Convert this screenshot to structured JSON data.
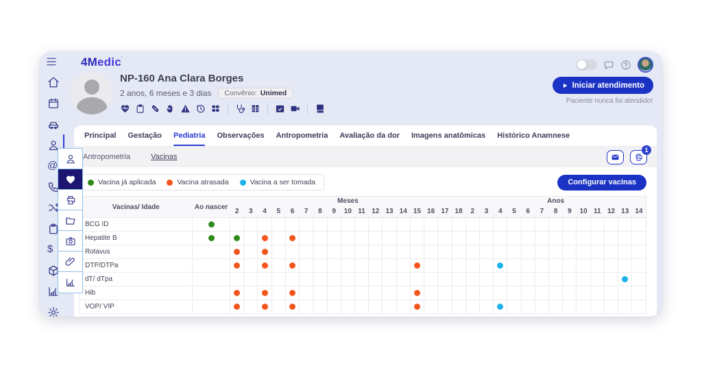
{
  "topbar": {
    "logo": {
      "bold": "4M",
      "rest": "edic",
      "mark": "’"
    },
    "right": [
      {
        "icon": "toggle",
        "name": "theme-toggle"
      },
      {
        "icon": "chat",
        "name": "chat"
      },
      {
        "icon": "help",
        "name": "help"
      },
      {
        "icon": "avatar",
        "name": "user-avatar"
      }
    ]
  },
  "sidebar": {
    "items": [
      {
        "icon": "home"
      },
      {
        "icon": "calendar"
      },
      {
        "icon": "vehicle"
      },
      {
        "icon": "person",
        "active": true
      },
      {
        "icon": "at"
      },
      {
        "icon": "phone"
      },
      {
        "icon": "split-arrows"
      },
      {
        "icon": "clipboard"
      },
      {
        "icon": "dollar"
      },
      {
        "icon": "box"
      },
      {
        "icon": "growth-chart"
      },
      {
        "icon": "gear"
      }
    ]
  },
  "quickbar": {
    "items": [
      {
        "icon": "person"
      },
      {
        "icon": "heart-pulse",
        "active": true
      },
      {
        "icon": "printer"
      },
      {
        "icon": "folder"
      },
      {
        "icon": "camera"
      },
      {
        "icon": "paperclip"
      },
      {
        "icon": "growth-chart"
      }
    ]
  },
  "patient": {
    "name": "NP-160 Ana Clara Borges",
    "age": "2 anos, 6 meses e 3 dias",
    "insurance_label": "Convênio:",
    "insurance_value": "Unimed",
    "action_icon_groups": [
      [
        "heart-pulse",
        "clipboard",
        "pill",
        "hand",
        "warning",
        "history",
        "grid"
      ],
      [
        "stethoscope",
        "spreadsheet"
      ],
      [
        "calendar-check",
        "video"
      ],
      [
        "book"
      ]
    ],
    "start_button": "Iniciar atendimento",
    "note": "Paciente nunca foi atendido!"
  },
  "tabs": {
    "items": [
      "Principal",
      "Gestação",
      "Pediatria",
      "Observações",
      "Antropometria",
      "Avaliação da dor",
      "Imagens anatômicas",
      "Histórico Anamnese"
    ],
    "active": "Pediatria"
  },
  "subtabs": {
    "items": [
      "Antropometria",
      "Vacinas"
    ],
    "active": "Vacinas",
    "mail_icon": "envelope",
    "print_icon": "printer",
    "print_badge": "1"
  },
  "legend": [
    {
      "key": "applied",
      "label": "Vacina já aplicada",
      "color": "#2e8b1e"
    },
    {
      "key": "late",
      "label": "Vacina atrasada",
      "color": "#f4551d"
    },
    {
      "key": "upcoming",
      "label": "Vacina a ser tomada",
      "color": "#1db2ec"
    }
  ],
  "configure_button": "Configurar vacinas",
  "colors": {
    "primary": "#1b33c4",
    "window_bg": "#e5e9f6",
    "sidebar_icon": "#383f8e",
    "quickbar_active_bg": "#1c1670",
    "active_tab": "#2b3bd6"
  },
  "table": {
    "vaccine_col": "Vacinas/ Idade",
    "birth_col": "Ao nascer",
    "months_label": "Meses",
    "years_label": "Anos",
    "months": [
      2,
      3,
      4,
      5,
      6,
      7,
      8,
      9,
      10,
      11,
      12,
      13,
      14,
      15,
      16,
      17,
      18
    ],
    "years": [
      2,
      3,
      4,
      5,
      6,
      7,
      8,
      9,
      10,
      11,
      12,
      13,
      14
    ],
    "rows": [
      {
        "name": "BCG ID",
        "marks": {
          "birth": "applied"
        }
      },
      {
        "name": "Hepatite B",
        "marks": {
          "birth": "applied",
          "m2": "applied",
          "m4": "late",
          "m6": "late"
        }
      },
      {
        "name": "Rotavus",
        "marks": {
          "m2": "late",
          "m4": "late"
        }
      },
      {
        "name": "DTP/DTPa",
        "marks": {
          "m2": "late",
          "m4": "late",
          "m6": "late",
          "m15": "late",
          "y4": "upcoming"
        }
      },
      {
        "name": "dT/ dTpa",
        "marks": {
          "y13": "upcoming"
        }
      },
      {
        "name": "Hib",
        "marks": {
          "m2": "late",
          "m4": "late",
          "m6": "late",
          "m15": "late"
        }
      },
      {
        "name": "VOP/ VIP",
        "marks": {
          "m2": "late",
          "m4": "late",
          "m6": "late",
          "m15": "late",
          "y4": "upcoming"
        }
      }
    ]
  }
}
